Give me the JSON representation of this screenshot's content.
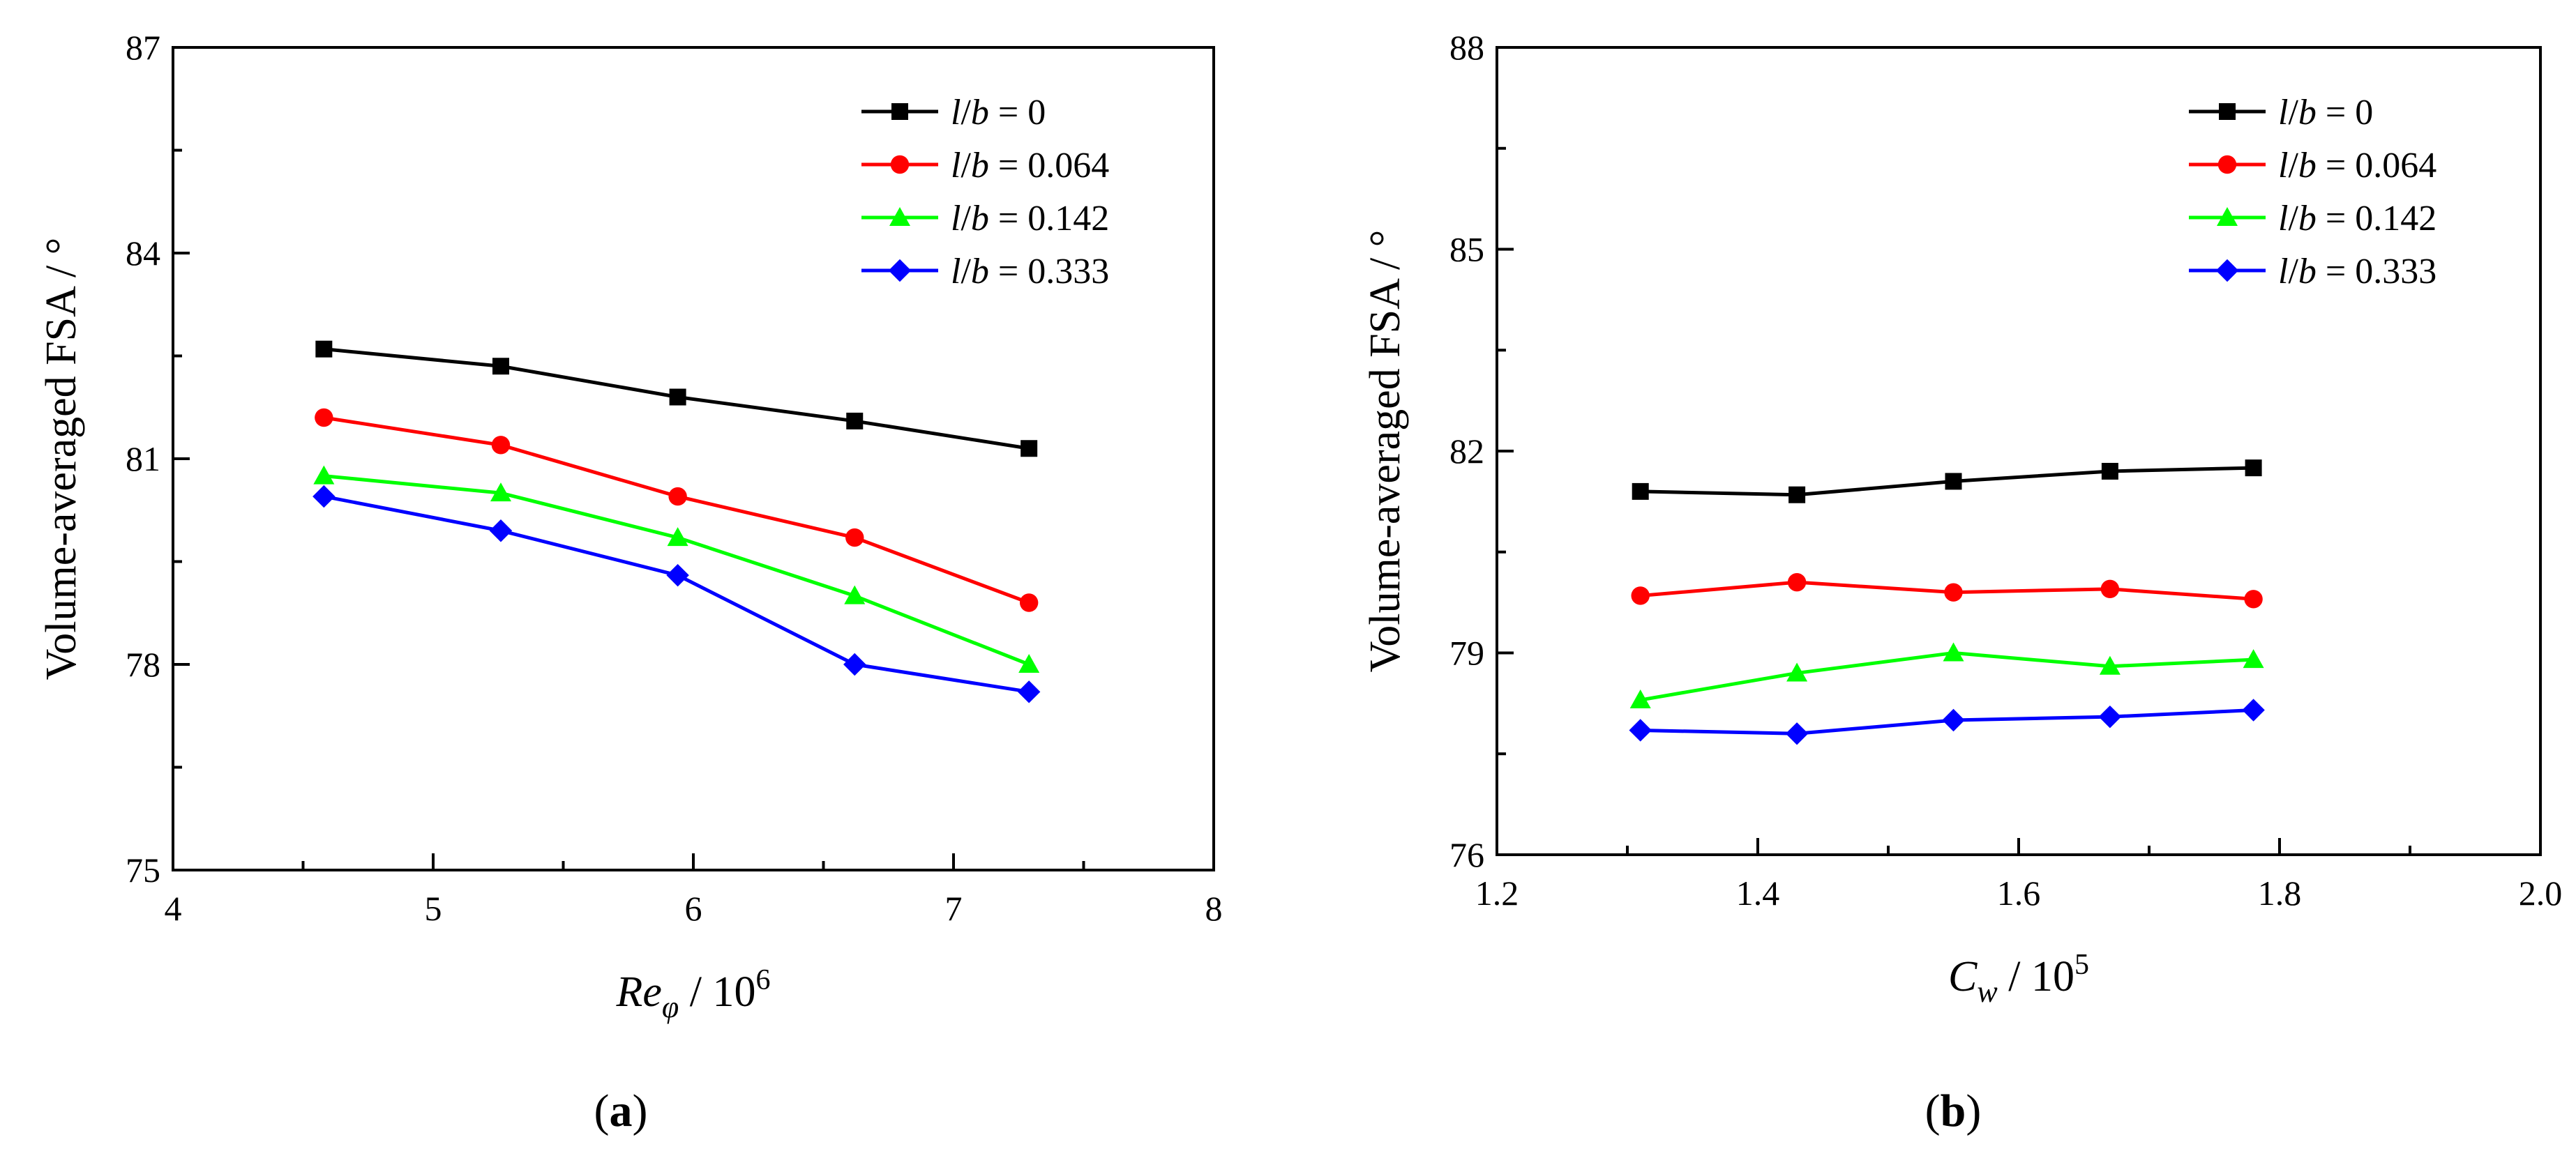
{
  "legend_entries": [
    {
      "var": "l",
      "sep": "/",
      "var2": "b",
      "rest": " = 0"
    },
    {
      "var": "l",
      "sep": "/",
      "var2": "b",
      "rest": " = 0.064"
    },
    {
      "var": "l",
      "sep": "/",
      "var2": "b",
      "rest": " = 0.142"
    },
    {
      "var": "l",
      "sep": "/",
      "var2": "b",
      "rest": " = 0.333"
    }
  ],
  "series_style": [
    {
      "color": "#000000",
      "marker": "square"
    },
    {
      "color": "#ff0000",
      "marker": "circle"
    },
    {
      "color": "#00ff00",
      "marker": "triangle"
    },
    {
      "color": "#0000ff",
      "marker": "diamond"
    }
  ],
  "captions": {
    "a": "a",
    "b": "b"
  },
  "chart_data": [
    {
      "type": "line",
      "panel": "a",
      "ylabel": "Volume-averaged FSA / °",
      "xlabel": {
        "main": "Re",
        "sub": "φ",
        "rest": " / 10",
        "sup": "6"
      },
      "xlim": [
        4,
        8
      ],
      "ylim": [
        75,
        87
      ],
      "xticks": [
        "4",
        "5",
        "6",
        "7",
        "8"
      ],
      "yticks": [
        "75",
        "78",
        "81",
        "84",
        "87"
      ],
      "x": [
        4.58,
        5.26,
        5.94,
        6.62,
        7.29
      ],
      "series": [
        {
          "name": "l/b = 0",
          "values": [
            82.6,
            82.35,
            81.9,
            81.55,
            81.15
          ]
        },
        {
          "name": "l/b = 0.064",
          "values": [
            81.6,
            81.2,
            80.45,
            79.85,
            78.9
          ]
        },
        {
          "name": "l/b = 0.142",
          "values": [
            80.75,
            80.5,
            79.85,
            79.0,
            78.0
          ]
        },
        {
          "name": "l/b = 0.333",
          "values": [
            80.45,
            79.95,
            79.3,
            78.0,
            77.6
          ]
        }
      ],
      "grid": false,
      "legend_position": "top-right"
    },
    {
      "type": "line",
      "panel": "b",
      "ylabel": "Volume-averaged FSA / °",
      "xlabel": {
        "main": "C",
        "sub": "w",
        "rest": " / 10",
        "sup": "5"
      },
      "xlim": [
        1.2,
        2.0
      ],
      "ylim": [
        76,
        88
      ],
      "xticks": [
        "1.2",
        "1.4",
        "1.6",
        "1.8",
        "2.0"
      ],
      "yticks": [
        "76",
        "79",
        "82",
        "85",
        "88"
      ],
      "x": [
        1.31,
        1.43,
        1.55,
        1.67,
        1.78
      ],
      "series": [
        {
          "name": "l/b = 0",
          "values": [
            81.4,
            81.35,
            81.55,
            81.7,
            81.75
          ]
        },
        {
          "name": "l/b = 0.064",
          "values": [
            79.85,
            80.05,
            79.9,
            79.95,
            79.8
          ]
        },
        {
          "name": "l/b = 0.142",
          "values": [
            78.3,
            78.7,
            79.0,
            78.8,
            78.9
          ]
        },
        {
          "name": "l/b = 0.333",
          "values": [
            77.85,
            77.8,
            78.0,
            78.05,
            78.15
          ]
        }
      ],
      "grid": false,
      "legend_position": "top-right"
    }
  ]
}
